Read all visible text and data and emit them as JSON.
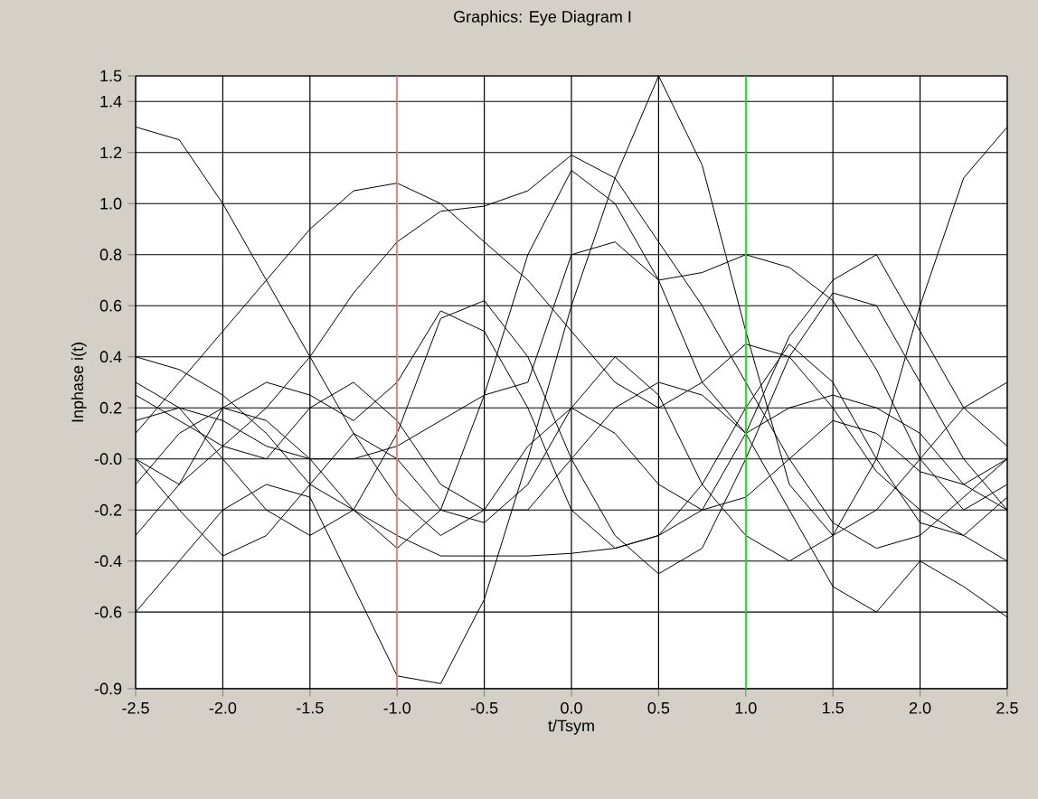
{
  "chart_data": {
    "type": "line",
    "title": "Graphics: Eye Diagram I",
    "xlabel": "t/Tsym",
    "ylabel": "Inphase i(t)",
    "x": [
      -2.5,
      -2.25,
      -2.0,
      -1.75,
      -1.5,
      -1.25,
      -1.0,
      -0.75,
      -0.5,
      -0.25,
      0.0,
      0.25,
      0.5,
      0.75,
      1.0,
      1.25,
      1.5,
      1.75,
      2.0,
      2.25,
      2.5
    ],
    "series": [
      {
        "color": "#000000",
        "values": [
          1.3,
          1.25,
          1.0,
          0.7,
          0.4,
          0.1,
          -0.15,
          -0.3,
          -0.2,
          0.05,
          0.2,
          0.1,
          -0.1,
          -0.2,
          -0.15,
          0.0,
          0.15,
          0.1,
          -0.05,
          -0.1,
          0.0
        ]
      },
      {
        "color": "#000000",
        "values": [
          -0.6,
          -0.4,
          -0.2,
          -0.1,
          -0.15,
          -0.5,
          -0.85,
          -0.88,
          -0.55,
          0.0,
          0.6,
          1.1,
          1.5,
          1.15,
          0.5,
          -0.1,
          -0.3,
          -0.2,
          0.0,
          0.2,
          0.3
        ]
      },
      {
        "color": "#000000",
        "values": [
          0.1,
          0.3,
          0.5,
          0.7,
          0.9,
          1.05,
          1.08,
          1.0,
          0.85,
          0.7,
          0.5,
          0.3,
          0.2,
          0.3,
          0.45,
          0.4,
          0.2,
          -0.05,
          -0.2,
          -0.3,
          -0.4
        ]
      },
      {
        "color": "#000000",
        "values": [
          0.0,
          -0.1,
          0.05,
          0.2,
          0.4,
          0.65,
          0.85,
          0.97,
          0.99,
          1.05,
          1.19,
          1.1,
          0.85,
          0.6,
          0.3,
          0.0,
          -0.25,
          -0.35,
          -0.3,
          -0.15,
          0.0
        ]
      },
      {
        "color": "#000000",
        "values": [
          0.3,
          0.2,
          0.0,
          -0.2,
          -0.3,
          -0.2,
          0.1,
          0.55,
          0.62,
          0.4,
          0.0,
          -0.3,
          -0.45,
          -0.35,
          0.0,
          0.4,
          0.65,
          0.6,
          0.3,
          0.0,
          -0.2
        ]
      },
      {
        "color": "#000000",
        "values": [
          -0.1,
          0.1,
          0.2,
          0.15,
          0.0,
          -0.2,
          -0.35,
          -0.2,
          0.25,
          0.8,
          1.13,
          1.0,
          0.7,
          0.3,
          0.1,
          0.48,
          0.7,
          0.8,
          0.5,
          0.2,
          0.05
        ]
      },
      {
        "color": "#000000",
        "values": [
          0.0,
          -0.2,
          -0.38,
          -0.3,
          -0.1,
          0.1,
          0.0,
          -0.2,
          -0.25,
          -0.1,
          0.2,
          0.4,
          0.25,
          -0.1,
          -0.3,
          -0.4,
          -0.3,
          0.0,
          0.6,
          1.1,
          1.3
        ]
      },
      {
        "color": "#000000",
        "values": [
          0.25,
          0.15,
          0.05,
          0.0,
          0.2,
          0.3,
          0.15,
          -0.1,
          -0.2,
          -0.2,
          0.0,
          0.2,
          0.3,
          0.25,
          0.1,
          -0.2,
          -0.5,
          -0.6,
          -0.4,
          -0.5,
          -0.62
        ]
      },
      {
        "color": "#000000",
        "values": [
          0.4,
          0.35,
          0.25,
          0.1,
          -0.1,
          -0.2,
          -0.3,
          -0.38,
          -0.38,
          -0.38,
          -0.37,
          -0.35,
          -0.3,
          -0.2,
          0.1,
          0.2,
          0.25,
          0.2,
          0.1,
          -0.1,
          -0.2
        ]
      },
      {
        "color": "#000000",
        "values": [
          -0.3,
          -0.1,
          0.2,
          0.3,
          0.25,
          0.15,
          0.3,
          0.58,
          0.5,
          0.2,
          -0.2,
          -0.35,
          -0.3,
          -0.1,
          0.2,
          0.45,
          0.3,
          0.0,
          -0.25,
          -0.3,
          -0.15
        ]
      },
      {
        "color": "#000000",
        "values": [
          0.15,
          0.2,
          0.15,
          0.05,
          0.0,
          0.0,
          0.05,
          0.15,
          0.25,
          0.3,
          0.8,
          0.85,
          0.7,
          0.73,
          0.8,
          0.75,
          0.62,
          0.35,
          0.0,
          -0.2,
          -0.1
        ]
      }
    ],
    "xlim": [
      -2.5,
      2.5
    ],
    "ylim": [
      -0.9,
      1.5
    ],
    "xticks": [
      -2.5,
      {
        "value": -2,
        "label": "-2.0"
      },
      -1.5,
      {
        "value": -1,
        "label": "-1.0"
      },
      -0.5,
      {
        "value": 0,
        "label": "0.0"
      },
      0.5,
      {
        "value": 1,
        "label": "1.0"
      },
      1.5,
      {
        "value": 2,
        "label": "2.0"
      },
      2.5
    ],
    "yticks": [
      -0.9,
      -0.6,
      -0.4,
      -0.2,
      {
        "value": 0,
        "label": "-0.0"
      },
      0.2,
      0.4,
      0.6,
      0.8,
      {
        "value": 1,
        "label": "1.0"
      },
      1.2,
      1.4,
      1.5
    ],
    "ref_lines": [
      {
        "axis": "x",
        "value": -1.0,
        "color": "#ff8080"
      },
      {
        "axis": "x",
        "value": 1.0,
        "color": "#00ff00"
      }
    ],
    "grid": true,
    "marker": "none",
    "line_style": "solid"
  }
}
